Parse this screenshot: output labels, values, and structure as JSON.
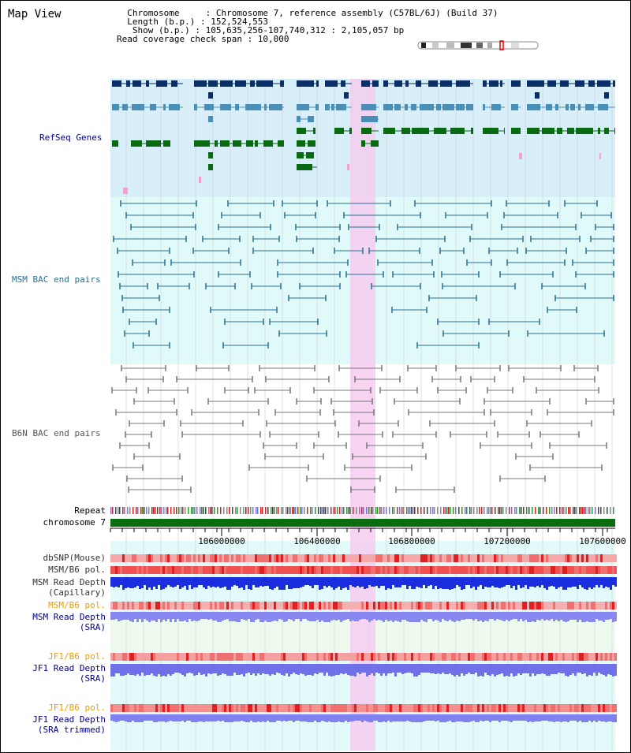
{
  "header": {
    "title": "Map View",
    "info_lines": [
      "  Chromosome     : Chromosome 7, reference assembly (C57BL/6J) (Build 37)",
      "  Length (b.p.) : 152,524,553",
      "   Show (b.p.) : 105,635,256-107,740,312 : 2,105,057 bp",
      "Read coverage check span : 10,000"
    ]
  },
  "tracks": {
    "refseq": "RefSeq Genes",
    "msm_bac": "MSM BAC end pairs",
    "b6n_bac": "B6N BAC end pairs",
    "repeat": "Repeat",
    "chromosome": "chromosome 7",
    "dbsnp": "dbSNP(Mouse)",
    "msm_b6_pol": "MSM/B6 pol.",
    "msm_depth_cap_1": "MSM Read Depth",
    "msm_depth_cap_2": "(Capillary)",
    "msm_b6_pol_2": "MSM/B6 pol.",
    "msm_depth_sra_1": "MSM Read Depth",
    "msm_depth_sra_2": "(SRA)",
    "jf1_b6_pol": "JF1/B6 pol.",
    "jf1_depth_sra_1": "JF1 Read Depth",
    "jf1_depth_sra_2": "(SRA)",
    "jf1_b6_pol_2": "JF1/B6 pol.",
    "jf1_depth_trim_1": "JF1 Read Depth",
    "jf1_depth_trim_2": "(SRA trimmed)"
  },
  "axis": {
    "ticks": [
      "106000000",
      "106400000",
      "106800000",
      "107200000",
      "107600000"
    ]
  },
  "colors": {
    "refseq_bg": "#d8eef8",
    "msm_bg": "#e0fafa",
    "highlight": "#f4cdf0",
    "gene_dark": "#0a2f66",
    "gene_mid": "#4a8fb8",
    "gene_green": "#0a6a14",
    "msm_pair": "#2a7090",
    "b6n_pair": "#777777",
    "chrom_bar": "#0a6e10"
  }
}
